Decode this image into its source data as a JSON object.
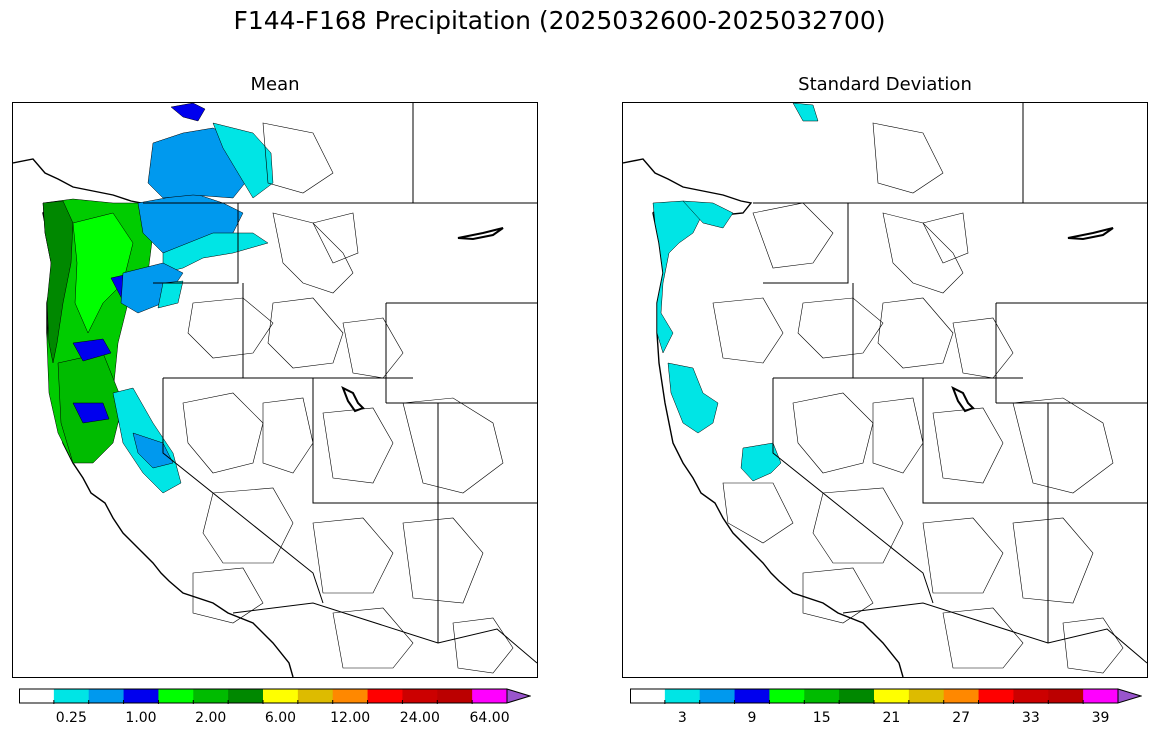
{
  "title": "F144-F168 Precipitation (2025032600-2025032700)",
  "panels": [
    {
      "title": "Mean",
      "colorbar": {
        "colors": [
          "#ffffff",
          "#00e5e5",
          "#0099ee",
          "#0000ee",
          "#00ff00",
          "#00bb00",
          "#008800",
          "#ffff00",
          "#ddbb00",
          "#ff8800",
          "#ff0000",
          "#cc0000",
          "#bb0000",
          "#ff00ff",
          "#9955cc"
        ],
        "tick_labels": [
          "0.25",
          "1.00",
          "2.00",
          "6.00",
          "12.00",
          "24.00",
          "64.00"
        ],
        "extend": "max"
      }
    },
    {
      "title": "Standard Deviation",
      "colorbar": {
        "colors": [
          "#ffffff",
          "#00e5e5",
          "#0099ee",
          "#0000ee",
          "#00ff00",
          "#00bb00",
          "#008800",
          "#ffff00",
          "#ddbb00",
          "#ff8800",
          "#ff0000",
          "#cc0000",
          "#bb0000",
          "#ff00ff",
          "#9955cc"
        ],
        "tick_labels": [
          "3",
          "9",
          "15",
          "21",
          "27",
          "33",
          "39"
        ],
        "extend": "max"
      }
    }
  ]
}
